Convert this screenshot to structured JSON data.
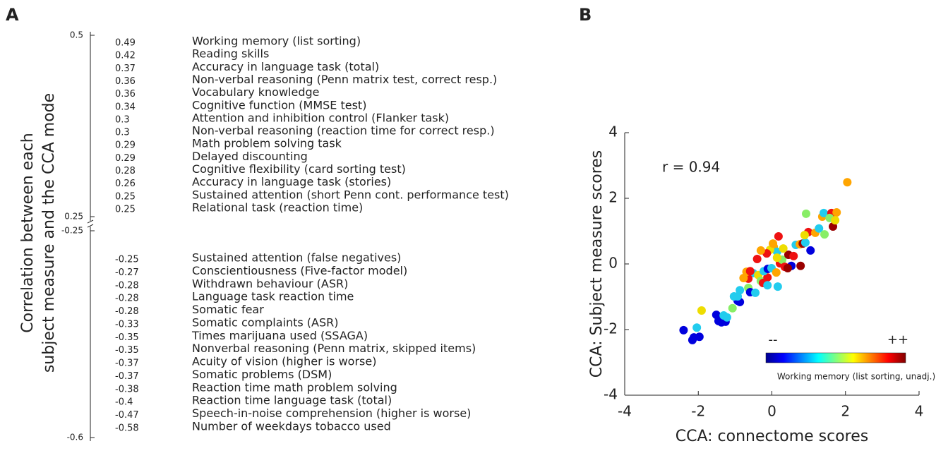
{
  "chart_data": [
    {
      "type": "ranked_list",
      "panel": "A",
      "ylabel": [
        "Correlation between each",
        "subject measure and the CCA mode"
      ],
      "ylim_upper": [
        0.25,
        0.5
      ],
      "ylim_lower": [
        -0.6,
        -0.25
      ],
      "yticks": [
        0.5,
        0.25,
        -0.25,
        -0.6
      ],
      "series": [
        {
          "name": "positive",
          "color": "#ee1111",
          "values": [
            0.49,
            0.42,
            0.37,
            0.36,
            0.36,
            0.34,
            0.3,
            0.3,
            0.29,
            0.29,
            0.28,
            0.26,
            0.25,
            0.25
          ],
          "labels": [
            "Working memory (list sorting)",
            "Reading skills",
            "Accuracy in language task (total)",
            "Non-verbal reasoning (Penn matrix test, correct resp.)",
            "Vocabulary knowledge",
            "Cognitive function (MMSE test)",
            "Attention and inhibition control (Flanker task)",
            "Non-verbal reasoning (reaction time for correct resp.)",
            "Math problem solving task",
            "Delayed discounting",
            "Cognitive flexibility (card sorting test)",
            "Accuracy in language task (stories)",
            "Sustained attention (short Penn cont. performance test)",
            "Relational task (reaction time)"
          ]
        },
        {
          "name": "negative",
          "color": "#1a1aee",
          "values": [
            -0.25,
            -0.27,
            -0.28,
            -0.28,
            -0.28,
            -0.33,
            -0.35,
            -0.35,
            -0.37,
            -0.37,
            -0.38,
            -0.4,
            -0.47,
            -0.58
          ],
          "labels": [
            "Sustained attention (false negatives)",
            "Conscientiousness (Five-factor model)",
            "Withdrawn behaviour (ASR)",
            "Language task reaction time",
            "Somatic fear",
            "Somatic complaints (ASR)",
            "Times marijuana used (SSAGA)",
            "Nonverbal reasoning (Penn matrix, skipped items)",
            "Acuity of vision (higher is worse)",
            "Somatic problems (DSM)",
            "Reaction time math problem solving",
            "Reaction time language task (total)",
            "Speech-in-noise comprehension (higher is worse)",
            "Number of weekdays tobacco used"
          ]
        }
      ]
    },
    {
      "type": "scatter",
      "panel": "B",
      "xlabel": "CCA: connectome scores",
      "ylabel": "CCA: Subject measure scores",
      "annotation": "r = 0.94",
      "xlim": [
        -4,
        4
      ],
      "ylim": [
        -4,
        4
      ],
      "xticks": [
        -4,
        -2,
        0,
        2,
        4
      ],
      "yticks": [
        -4,
        -2,
        0,
        2,
        4
      ],
      "colorbar": {
        "label": "Working memory (list sorting, unadj.)",
        "low": "--",
        "high": "++"
      },
      "x": [
        -2.4,
        -2.16,
        -2.12,
        -1.97,
        -2.04,
        -1.91,
        -1.51,
        -1.45,
        -1.37,
        -1.26,
        -1.22,
        -1.31,
        -1.07,
        -0.93,
        -0.87,
        -0.93,
        -0.87,
        -0.64,
        -0.59,
        -0.45,
        -0.51,
        -0.64,
        -0.77,
        -0.69,
        -0.59,
        -0.37,
        -0.3,
        -0.24,
        -0.12,
        -0.22,
        -0.11,
        -0.01,
        0.12,
        0.22,
        0.28,
        0.35,
        0.45,
        0.53,
        0.59,
        0.65,
        0.76,
        0.78,
        0.84,
        0.91,
        0.99,
        1.05,
        0.89,
        0.93,
        1.18,
        1.28,
        1.37,
        1.41,
        1.43,
        1.66,
        1.62,
        1.76,
        1.57,
        1.72,
        2.05,
        0.05,
        0.14,
        -0.05,
        -0.14,
        -0.3,
        -0.4,
        0.18,
        0.31,
        0.03,
        0.14,
        -0.12,
        0.16,
        0.43,
        -1.03
      ],
      "values": [
        -2.02,
        -2.32,
        -2.24,
        -2.22,
        -1.94,
        -1.42,
        -1.55,
        -1.74,
        -1.78,
        -1.76,
        -1.63,
        -1.57,
        -1.35,
        -1.12,
        -1.16,
        -0.99,
        -0.8,
        -0.73,
        -0.86,
        -0.88,
        -0.28,
        -0.45,
        -0.43,
        -0.24,
        -0.22,
        -0.34,
        -0.52,
        -0.58,
        -0.41,
        -0.22,
        -0.15,
        -0.13,
        -0.26,
        0.02,
        0.13,
        -0.09,
        0.28,
        -0.06,
        0.24,
        0.58,
        0.6,
        -0.06,
        0.62,
        0.65,
        0.97,
        0.41,
        0.88,
        1.53,
        0.95,
        1.08,
        1.44,
        1.55,
        0.9,
        1.14,
        1.55,
        1.57,
        1.4,
        1.33,
        2.49,
        0.52,
        0.37,
        0.43,
        0.32,
        0.41,
        0.15,
        0.84,
        0.47,
        0.62,
        0.19,
        -0.65,
        -0.69,
        -0.13,
        -0.99
      ],
      "colors": [
        "#0000dd",
        "#0000dd",
        "#0000dd",
        "#0000dd",
        "#22ccee",
        "#eedd00",
        "#0000dd",
        "#0000dd",
        "#0000dd",
        "#0000dd",
        "#22ccee",
        "#22ccee",
        "#88ee66",
        "#0000dd",
        "#0000dd",
        "#22ccee",
        "#22ccee",
        "#88ee66",
        "#0000dd",
        "#22ccee",
        "#22ccee",
        "#ee1111",
        "#ffa500",
        "#ffa500",
        "#ee1111",
        "#eedd00",
        "#88ee66",
        "#ee1111",
        "#ee1111",
        "#22ccee",
        "#0000dd",
        "#22ccee",
        "#ffa500",
        "#ee1111",
        "#88ee66",
        "#ee1111",
        "#990000",
        "#0000dd",
        "#ee1111",
        "#22ccee",
        "#ffa500",
        "#990000",
        "#990000",
        "#22ccee",
        "#ee1111",
        "#0000dd",
        "#eedd00",
        "#88ee66",
        "#ffa500",
        "#22ccee",
        "#ffa500",
        "#22ccee",
        "#88ee66",
        "#990000",
        "#ee1111",
        "#ffa500",
        "#88ee66",
        "#eedd00",
        "#ffa500",
        "#ffa500",
        "#22ccee",
        "#eedd00",
        "#ee1111",
        "#ffa500",
        "#ee1111",
        "#ee1111",
        "#eedd00",
        "#ffa500",
        "#eedd00",
        "#22ccee",
        "#22ccee",
        "#990000",
        "#22ccee"
      ]
    }
  ],
  "panels": {
    "a": "A",
    "b": "B"
  }
}
